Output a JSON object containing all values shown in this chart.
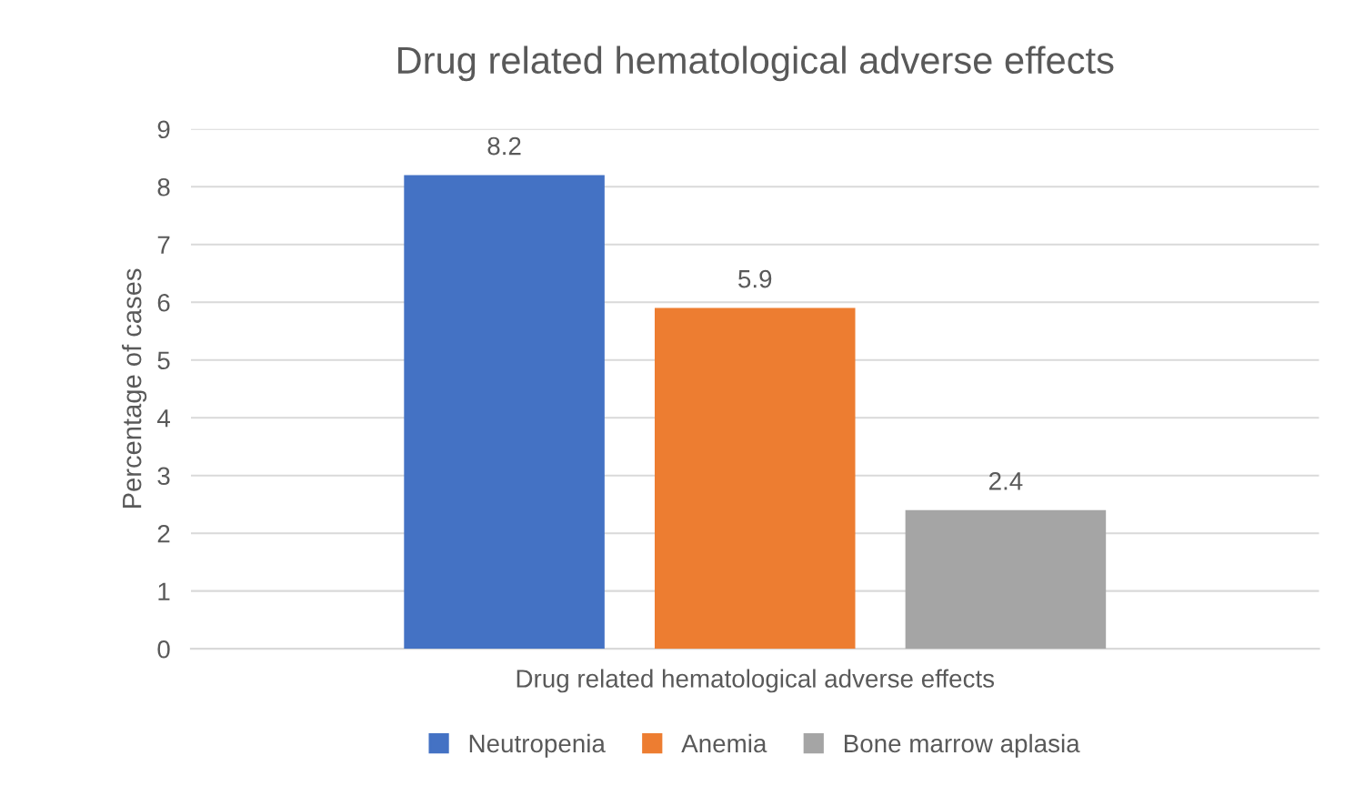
{
  "chart_data": {
    "type": "bar",
    "title": "Drug related hematological adverse effects",
    "ylabel": "Percentage of cases",
    "categories": [
      "Drug related hematological adverse effects"
    ],
    "series": [
      {
        "name": "Neutropenia",
        "color": "#4472c4",
        "values": [
          8.2
        ]
      },
      {
        "name": "Anemia",
        "color": "#ed7d31",
        "values": [
          5.9
        ]
      },
      {
        "name": "Bone marrow aplasia",
        "color": "#a5a5a5",
        "values": [
          2.4
        ]
      }
    ],
    "ylim": [
      0,
      9
    ],
    "yticks": [
      0,
      1,
      2,
      3,
      4,
      5,
      6,
      7,
      8,
      9
    ],
    "grid": "y",
    "legend": "bottom",
    "data_labels": true
  }
}
